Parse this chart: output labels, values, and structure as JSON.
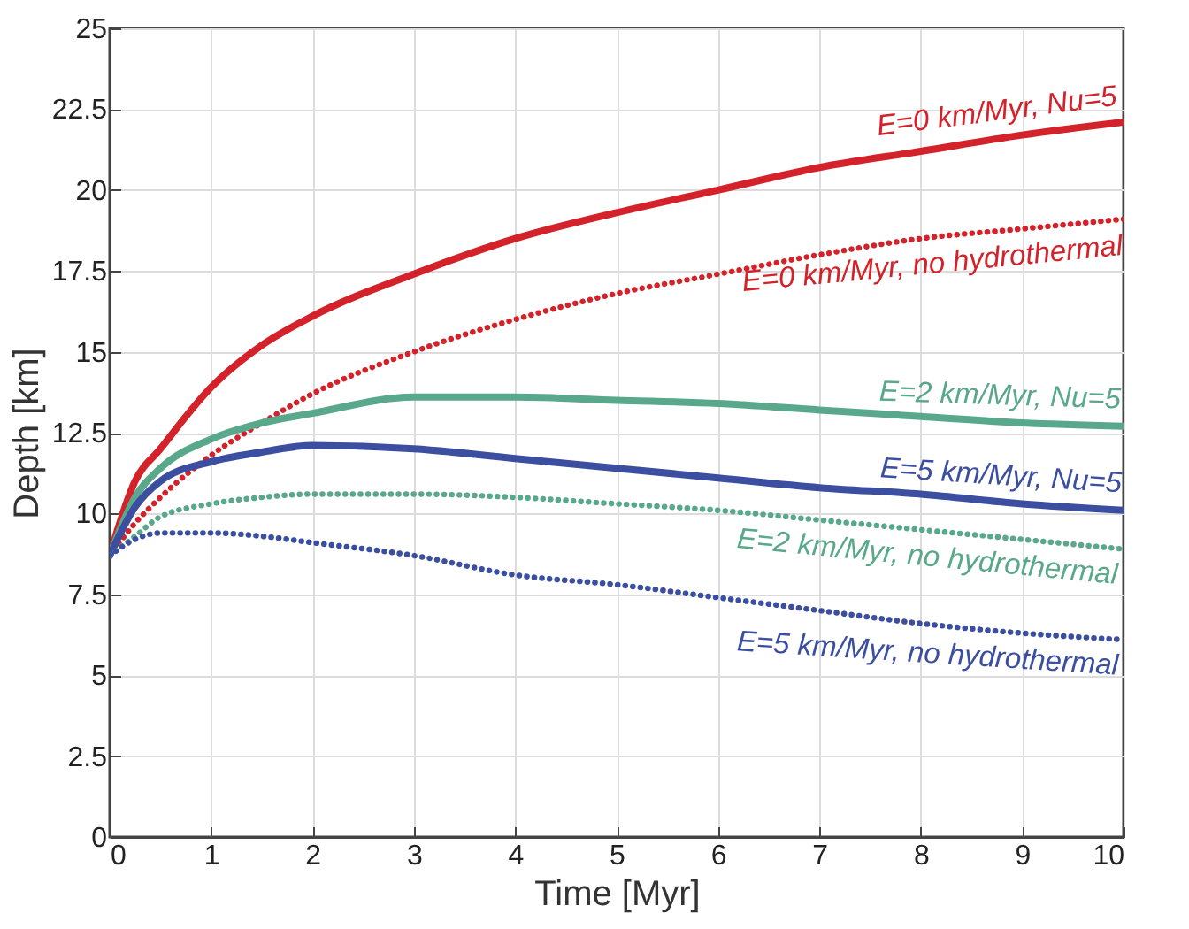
{
  "chart_data": {
    "type": "line",
    "xlabel": "Time [Myr]",
    "ylabel": "Depth [km]",
    "xlim": [
      0,
      10
    ],
    "xticks": [
      0,
      1,
      2,
      3,
      4,
      5,
      6,
      7,
      8,
      9,
      10
    ],
    "ylim": [
      0,
      25
    ],
    "yticks": [
      0,
      2.5,
      5,
      7.5,
      10,
      12.5,
      15,
      17.5,
      20,
      22.5,
      25
    ],
    "grid": true,
    "marker": "none",
    "x": [
      0,
      0.25,
      0.5,
      1,
      1.5,
      2,
      3,
      4,
      5,
      6,
      7,
      8,
      9,
      10
    ],
    "series": [
      {
        "name": "E=0 km/Myr, Nu=5",
        "color": "#d3222a",
        "line_style": "solid",
        "values": [
          8.7,
          11.0,
          12.0,
          13.9,
          15.2,
          16.1,
          17.4,
          18.5,
          19.3,
          20.0,
          20.7,
          21.2,
          21.7,
          22.1
        ]
      },
      {
        "name": "E=0 km/Myr, no hydrothermal",
        "color": "#d3222a",
        "line_style": "dotted",
        "values": [
          8.7,
          9.7,
          10.5,
          11.8,
          12.8,
          13.7,
          15.0,
          16.0,
          16.8,
          17.4,
          18.0,
          18.5,
          18.8,
          19.1
        ]
      },
      {
        "name": "E=2 km/Myr, Nu=5",
        "color": "#5aa88b",
        "line_style": "solid",
        "values": [
          8.7,
          10.5,
          11.4,
          12.3,
          12.8,
          13.1,
          13.6,
          13.6,
          13.5,
          13.4,
          13.2,
          13.0,
          12.8,
          12.7
        ]
      },
      {
        "name": "E=5 km/Myr, Nu=5",
        "color": "#3b4ea0",
        "line_style": "solid",
        "values": [
          8.7,
          10.2,
          11.0,
          11.6,
          11.9,
          12.1,
          12.0,
          11.7,
          11.4,
          11.1,
          10.8,
          10.6,
          10.3,
          10.1
        ]
      },
      {
        "name": "E=2 km/Myr, no hydrothermal",
        "color": "#5aa88b",
        "line_style": "dotted",
        "values": [
          8.7,
          9.3,
          9.9,
          10.3,
          10.5,
          10.6,
          10.6,
          10.5,
          10.3,
          10.1,
          9.8,
          9.5,
          9.2,
          8.9
        ]
      },
      {
        "name": "E=5 km/Myr, no hydrothermal",
        "color": "#3b4ea0",
        "line_style": "dotted",
        "values": [
          8.7,
          9.2,
          9.4,
          9.4,
          9.3,
          9.1,
          8.7,
          8.1,
          7.8,
          7.4,
          7.0,
          6.6,
          6.3,
          6.1
        ]
      }
    ]
  }
}
